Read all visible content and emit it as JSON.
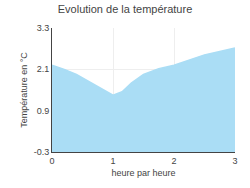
{
  "chart_data": {
    "type": "area",
    "title": "Evolution de la température",
    "xlabel": "heure par heure",
    "ylabel": "Température en °C",
    "x": [
      0,
      0.2,
      0.4,
      0.6,
      0.8,
      1.0,
      1.15,
      1.3,
      1.5,
      1.75,
      2.0,
      2.25,
      2.5,
      2.75,
      3.0
    ],
    "values": [
      2.22,
      2.1,
      1.95,
      1.75,
      1.55,
      1.35,
      1.45,
      1.7,
      1.95,
      2.12,
      2.22,
      2.38,
      2.52,
      2.62,
      2.72
    ],
    "color": "#aaddf5",
    "xlim": [
      0,
      3
    ],
    "ylim": [
      -0.3,
      3.3
    ],
    "xticks": [
      0,
      1,
      2,
      3
    ],
    "yticks": [
      -0.3,
      0.9,
      2.1,
      3.3
    ],
    "grid": true
  }
}
